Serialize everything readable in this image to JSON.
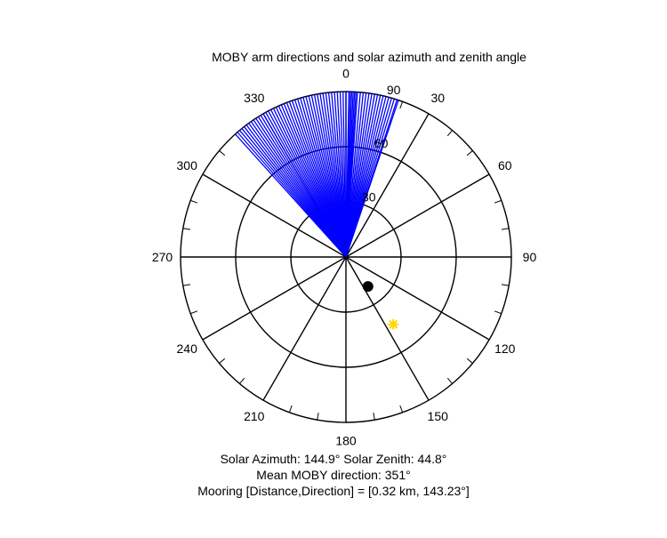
{
  "chart_data": {
    "type": "polar",
    "title": "MOBY arm directions and solar azimuth and zenith angle",
    "radial_ticks": [
      "30",
      "60",
      "90"
    ],
    "radial_max": 90,
    "angle_ticks": [
      "0",
      "30",
      "60",
      "90",
      "120",
      "150",
      "180",
      "210",
      "240",
      "270",
      "300",
      "330"
    ],
    "angle_zero": "top",
    "angle_direction": "clockwise",
    "arm_series": {
      "color": "#0000ff",
      "length": 90,
      "directions_deg": [
        0,
        1,
        1.5,
        2,
        2.5,
        3,
        3.5,
        4,
        5,
        6,
        7,
        8,
        9,
        10,
        11,
        12,
        13,
        14,
        15,
        16,
        17,
        18,
        18.5,
        359,
        358,
        357,
        356,
        355,
        354,
        353,
        352,
        351,
        350,
        349,
        348,
        347,
        346,
        345,
        344,
        343,
        342,
        341,
        340,
        339,
        338,
        337,
        336,
        335,
        334,
        333,
        332,
        331,
        330,
        329,
        328,
        327,
        326,
        325,
        324,
        323,
        322,
        321,
        320,
        319,
        318
      ]
    },
    "solar_point": {
      "azimuth_deg": 144.9,
      "zenith_deg": 44.8,
      "color": "#ffd700",
      "marker": "star"
    },
    "mooring_point": {
      "direction_deg": 143.23,
      "radial": 20,
      "color": "#000000",
      "marker": "dot"
    }
  },
  "captions": {
    "line1": "Solar Azimuth: 144.9°   Solar Zenith: 44.8°",
    "line2": "Mean MOBY direction: 351°",
    "line3": "Mooring [Distance,Direction] = [0.32 km, 143.23°]"
  }
}
